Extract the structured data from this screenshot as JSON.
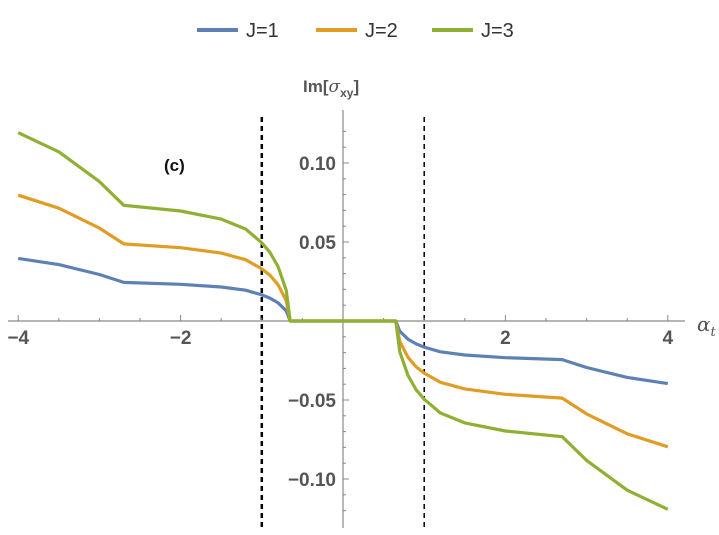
{
  "chart_data": {
    "type": "line",
    "title": "",
    "panel_label": "(c)",
    "xlabel": "α",
    "xlabel_sub": "t",
    "ylabel_prefix": "Im[",
    "ylabel_symbol": "σ",
    "ylabel_sub": "xy",
    "ylabel_suffix": "]",
    "xlim": [
      -4.0,
      4.0
    ],
    "ylim": [
      -0.13,
      0.13
    ],
    "x_ticks": [
      -4,
      -2,
      2,
      4
    ],
    "x_tick_labels": [
      "−4",
      "−2",
      "2",
      "4"
    ],
    "y_ticks": [
      0.1,
      0.05,
      -0.05,
      -0.1
    ],
    "y_tick_labels": [
      "0.10",
      "0.05",
      "−0.05",
      "−0.10"
    ],
    "vlines": [
      -1.0,
      1.0
    ],
    "legend_position": "top-center",
    "series": [
      {
        "name": "J=1",
        "color": "#5E81B5",
        "x": [
          -4.0,
          -3.5,
          -3.0,
          -2.7,
          -2.0,
          -1.5,
          -1.2,
          -1.0,
          -0.9,
          -0.8,
          -0.7,
          -0.65,
          0.0,
          0.65,
          0.7,
          0.8,
          0.9,
          1.0,
          1.2,
          1.5,
          2.0,
          2.7,
          3.0,
          3.5,
          4.0
        ],
        "y": [
          0.0396,
          0.0357,
          0.0294,
          0.0244,
          0.0232,
          0.0215,
          0.0195,
          0.0165,
          0.0145,
          0.0115,
          0.0065,
          0.0,
          0.0,
          0.0,
          -0.0065,
          -0.0115,
          -0.0145,
          -0.0165,
          -0.0195,
          -0.0215,
          -0.0232,
          -0.0244,
          -0.0294,
          -0.0357,
          -0.0396
        ]
      },
      {
        "name": "J=2",
        "color": "#E19C24",
        "x": [
          -4.0,
          -3.5,
          -3.0,
          -2.7,
          -2.0,
          -1.5,
          -1.2,
          -1.0,
          -0.9,
          -0.8,
          -0.7,
          -0.65,
          0.0,
          0.65,
          0.7,
          0.8,
          0.9,
          1.0,
          1.2,
          1.5,
          2.0,
          2.7,
          3.0,
          3.5,
          4.0
        ],
        "y": [
          0.0796,
          0.0714,
          0.0588,
          0.0488,
          0.0464,
          0.043,
          0.0388,
          0.033,
          0.029,
          0.023,
          0.013,
          0.0,
          0.0,
          0.0,
          -0.013,
          -0.023,
          -0.029,
          -0.033,
          -0.0388,
          -0.043,
          -0.0464,
          -0.0488,
          -0.0588,
          -0.0714,
          -0.0796
        ]
      },
      {
        "name": "J=3",
        "color": "#8FB032",
        "x": [
          -4.0,
          -3.5,
          -3.0,
          -2.7,
          -2.0,
          -1.5,
          -1.2,
          -1.0,
          -0.9,
          -0.8,
          -0.7,
          -0.65,
          0.0,
          0.65,
          0.7,
          0.8,
          0.9,
          1.0,
          1.2,
          1.5,
          2.0,
          2.7,
          3.0,
          3.5,
          4.0
        ],
        "y": [
          0.1192,
          0.1071,
          0.0882,
          0.0732,
          0.0696,
          0.0645,
          0.0582,
          0.0495,
          0.0435,
          0.0345,
          0.0195,
          0.0,
          0.0,
          0.0,
          -0.0195,
          -0.0345,
          -0.0435,
          -0.0495,
          -0.0582,
          -0.0645,
          -0.0696,
          -0.0732,
          -0.0882,
          -0.1071,
          -0.1192
        ]
      }
    ]
  }
}
